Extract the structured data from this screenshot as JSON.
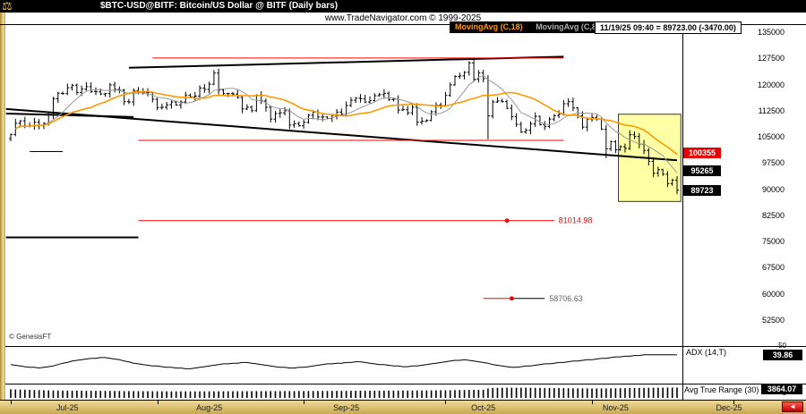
{
  "window": {
    "title": "$BTC-USD@BITF:  Bitcoin/US Dollar @ BITF  (Daily bars)",
    "subtitle": "www.TradeNavigator.com © 1999-2025",
    "credit": "© GenesisFT"
  },
  "legend": {
    "ma1_label": "MovingAvg (C,18)",
    "ma2_label": "MovingAvg (C,8)",
    "quote": "11/19/25 09:40 = 89723.00 (-3470.00)"
  },
  "colors": {
    "ma18": "#ff9900",
    "ma8": "#999999",
    "bars": "#000000",
    "annotation_red": "#ff0000",
    "highlight_fill": "#ffffa6",
    "gold_chrome": "#d9bd6d",
    "badge_red": "#e60000",
    "badge_black": "#000000"
  },
  "price_axis": {
    "ticks": [
      135000,
      127500,
      120000,
      112500,
      105000,
      97500,
      90000,
      82500,
      75000,
      67500,
      60000,
      52500
    ],
    "badges": [
      {
        "value": "100355",
        "price": 100355,
        "bg": "#e60000",
        "fg": "#ffffff"
      },
      {
        "value": "95265",
        "price": 95265,
        "bg": "#000000",
        "fg": "#ffffff"
      },
      {
        "value": "89723",
        "price": 89723,
        "bg": "#000000",
        "fg": "#ffffff"
      }
    ]
  },
  "chart_data": {
    "type": "ohlc-bar",
    "symbol": "$BTC-USD@BITF",
    "description": "Bitcoin/US Dollar @ BITF",
    "timeframe": "Daily bars",
    "ylim": [
      52500,
      135000
    ],
    "last_bar": {
      "date": "11/19/25",
      "time": "09:40",
      "close": 89723.0,
      "change": -3470.0
    },
    "closes": [
      105700,
      108900,
      109600,
      108000,
      108200,
      109200,
      108300,
      108900,
      111300,
      115900,
      117500,
      117400,
      119100,
      119800,
      117700,
      118700,
      119400,
      118000,
      117900,
      117300,
      117400,
      119900,
      118600,
      118400,
      115100,
      115000,
      118200,
      117900,
      117700,
      117700,
      115800,
      113400,
      113500,
      114200,
      115000,
      114100,
      115000,
      116900,
      116500,
      116700,
      119000,
      118600,
      120100,
      123300,
      118400,
      117400,
      117400,
      117300,
      116300,
      113000,
      113500,
      112500,
      116900,
      115300,
      113500,
      110100,
      111700,
      111900,
      112500,
      108400,
      108800,
      108200,
      109200,
      111200,
      112100,
      110700,
      110700,
      110300,
      111200,
      112100,
      111500,
      114000,
      115500,
      116100,
      115900,
      115000,
      115400,
      116800,
      117100,
      117500,
      115700,
      115800,
      112700,
      112800,
      111900,
      113500,
      109200,
      109500,
      109700,
      112200,
      114100,
      114000,
      116900,
      119900,
      122300,
      122500,
      123500,
      126200,
      121500,
      123300,
      121700,
      111000,
      115000,
      115300,
      115100,
      113200,
      110800,
      108600,
      106400,
      106900,
      108700,
      110900,
      108500,
      108000,
      110100,
      111100,
      111500,
      114500,
      115100,
      113300,
      111100,
      107800,
      110100,
      110600,
      110100,
      107200,
      101600,
      103600,
      101300,
      102200,
      101700,
      105600,
      105100,
      102900,
      101100,
      98000,
      94600,
      95600,
      94300,
      91600,
      92600,
      89723
    ],
    "wick_high": {
      "97": 126700
    },
    "wick_low": {
      "101": 104300,
      "126": 98900,
      "141": 88600
    },
    "overlays": [
      {
        "name": "MovingAvg",
        "params": "C,18",
        "color": "#ff9900"
      },
      {
        "name": "MovingAvg",
        "params": "C,8",
        "color": "#999999"
      }
    ],
    "annotations": [
      {
        "name": "descending-trendline",
        "color": "#000000",
        "width": 2,
        "d1": -1,
        "p1": 113000,
        "d2": 141,
        "p2": 98300
      },
      {
        "name": "upper-trendline",
        "color": "#000000",
        "width": 2,
        "d1": 25,
        "p1": 124800,
        "d2": 117,
        "p2": 128000
      },
      {
        "name": "upper-red-line",
        "color": "#ff0000",
        "width": 1,
        "d1": 30,
        "p1": 127600,
        "d2": 117,
        "p2": 127600
      },
      {
        "name": "mid-red-line",
        "color": "#ff0000",
        "width": 1,
        "d1": 27,
        "p1": 104000,
        "d2": 117,
        "p2": 104000
      },
      {
        "name": "support-red-line",
        "color": "#ff0000",
        "width": 1,
        "d1": 27,
        "p1": 81014.98,
        "d2": 115,
        "p2": 81014.98,
        "dot_day": 105,
        "label": "81014.98",
        "label_color": "#ff0000"
      },
      {
        "name": "fib-red-segment",
        "color": "#ff0000",
        "width": 1,
        "d1": 100,
        "p1": 58706.63,
        "d2": 106,
        "p2": 58706.63,
        "dot_day": 106
      },
      {
        "name": "fib-gray-segment",
        "color": "#000000",
        "width": 1,
        "d1": 106,
        "p1": 58706.63,
        "d2": 113,
        "p2": 58706.63,
        "label": "58706.63",
        "label_color": "#666666"
      },
      {
        "name": "left-support-line",
        "color": "#000000",
        "width": 2,
        "d1": -1,
        "p1": 76200,
        "d2": 27,
        "p2": 76200
      },
      {
        "name": "left-channel-line",
        "color": "#000000",
        "width": 2,
        "d1": -1,
        "p1": 111700,
        "d2": 26,
        "p2": 110700
      },
      {
        "name": "left-minor-line",
        "color": "#000000",
        "width": 1,
        "d1": 4,
        "p1": 100800,
        "d2": 11,
        "p2": 100800
      }
    ],
    "highlight_box": {
      "d1": 128.6,
      "d2": 141.8,
      "p_top": 111500,
      "p_bottom": 86500,
      "fill": "#ffffa6",
      "stroke": "#333333"
    }
  },
  "adx_panel": {
    "label": "ADX (14,T)",
    "badge": "39.86",
    "scale_top": "50",
    "range": [
      0,
      50
    ],
    "values": [
      26,
      25,
      24,
      23,
      22,
      22,
      21,
      22,
      23,
      24,
      26,
      28,
      29,
      31,
      32,
      33,
      34,
      35,
      35,
      36,
      36,
      35,
      34,
      33,
      31,
      30,
      28,
      27,
      26,
      25,
      24,
      24,
      23,
      22,
      22,
      21,
      21,
      20,
      20,
      21,
      22,
      23,
      24,
      25,
      26,
      27,
      27,
      28,
      28,
      29,
      29,
      28,
      27,
      26,
      25,
      24,
      23,
      22,
      22,
      21,
      21,
      22,
      22,
      23,
      24,
      25,
      26,
      27,
      27,
      28,
      28,
      29,
      29,
      30,
      30,
      29,
      28,
      27,
      26,
      26,
      25,
      24,
      24,
      23,
      23,
      24,
      24,
      25,
      26,
      27,
      28,
      29,
      30,
      31,
      32,
      32,
      33,
      32,
      31,
      30,
      29,
      28,
      26,
      25,
      24,
      23,
      22,
      22,
      23,
      24,
      24,
      25,
      26,
      27,
      27,
      28,
      29,
      29,
      30,
      31,
      31,
      32,
      33,
      33,
      34,
      35,
      35,
      36,
      37,
      37,
      38,
      38,
      39,
      39,
      40,
      40,
      40,
      40,
      40,
      40,
      40,
      39.86
    ]
  },
  "atr_panel": {
    "label": "Avg True Range (30)",
    "badge": "3864.07",
    "scale_bottom": "0",
    "range": [
      0,
      4500
    ],
    "values": [
      3200,
      3150,
      3100,
      3050,
      3000,
      2950,
      2900,
      2850,
      2800,
      2780,
      2760,
      2750,
      2740,
      2720,
      2700,
      2680,
      2660,
      2650,
      2640,
      2630,
      2620,
      2600,
      2580,
      2560,
      2550,
      2540,
      2530,
      2520,
      2510,
      2500,
      2490,
      2480,
      2470,
      2460,
      2450,
      2450,
      2440,
      2440,
      2430,
      2430,
      2430,
      2440,
      2450,
      2460,
      2470,
      2480,
      2490,
      2500,
      2500,
      2510,
      2510,
      2520,
      2520,
      2530,
      2530,
      2540,
      2540,
      2550,
      2550,
      2560,
      2560,
      2570,
      2570,
      2580,
      2580,
      2590,
      2590,
      2600,
      2610,
      2620,
      2620,
      2630,
      2640,
      2650,
      2660,
      2670,
      2680,
      2690,
      2700,
      2710,
      2720,
      2730,
      2740,
      2750,
      2760,
      2770,
      2780,
      2790,
      2800,
      2810,
      2820,
      2840,
      2860,
      2880,
      2900,
      2920,
      2940,
      2960,
      2980,
      3000,
      3050,
      3500,
      3700,
      3750,
      3780,
      3800,
      3810,
      3800,
      3790,
      3780,
      3760,
      3740,
      3720,
      3700,
      3680,
      3660,
      3640,
      3620,
      3600,
      3580,
      3560,
      3550,
      3540,
      3530,
      3520,
      3530,
      3540,
      3560,
      3580,
      3600,
      3620,
      3650,
      3680,
      3710,
      3740,
      3760,
      3780,
      3800,
      3820,
      3840,
      3855,
      3864
    ]
  },
  "time_axis": {
    "months": [
      {
        "label": "Jul-25",
        "day": 12
      },
      {
        "label": "Aug-25",
        "day": 42
      },
      {
        "label": "Sep-25",
        "day": 71
      },
      {
        "label": "Oct-25",
        "day": 100
      },
      {
        "label": "Nov-25",
        "day": 128
      },
      {
        "label": "Dec-25",
        "day": 152
      }
    ],
    "tick_days": [
      0,
      31,
      62,
      92,
      123,
      153
    ]
  },
  "nav": {
    "scroll_left_icon": "◄"
  }
}
